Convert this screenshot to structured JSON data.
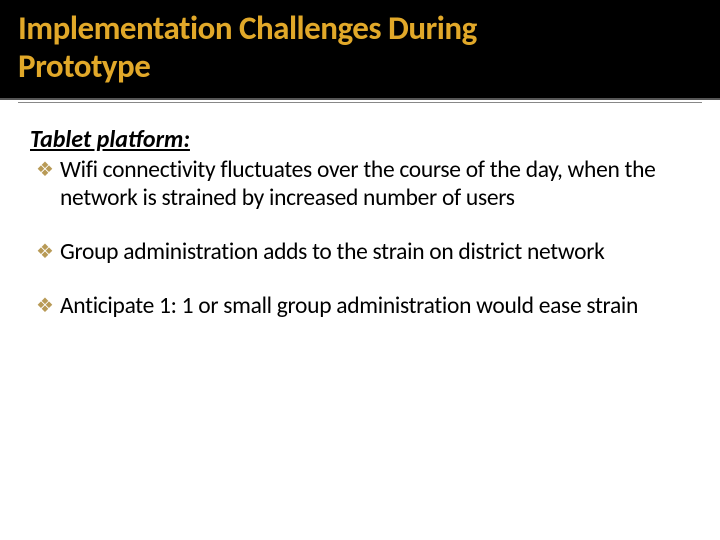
{
  "title": {
    "line1": "Implementation Challenges During",
    "line2": "Prototype",
    "color": "#e1a829"
  },
  "subhead": "Tablet platform:",
  "bullets": [
    "Wifi connectivity fluctuates over the course of the day, when the network is strained by increased number of users",
    "Group administration adds to the strain on district network",
    "Anticipate 1: 1 or small group administration would ease strain"
  ],
  "bullet_marker": "❖",
  "bullet_marker_color": "#b89a56",
  "background_color": "#ffffff",
  "title_bar_color": "#000000"
}
